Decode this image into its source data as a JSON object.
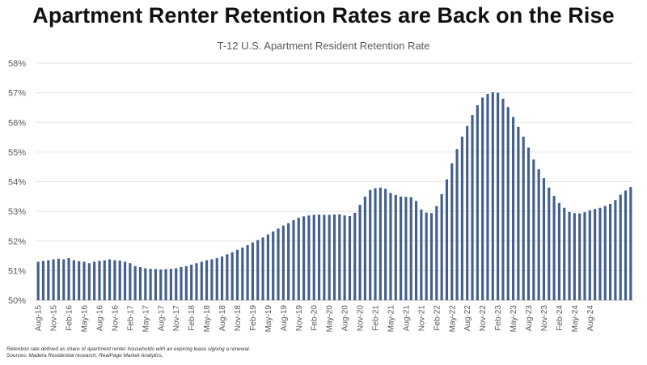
{
  "chart_data": {
    "type": "bar",
    "headline": "Apartment Renter Retention Rates are Back on the Rise",
    "title": "T-12 U.S. Apartment Resident Retention Rate",
    "xlabel": "",
    "ylabel": "",
    "ylim": [
      50,
      58
    ],
    "yticks": [
      "50%",
      "51%",
      "52%",
      "53%",
      "54%",
      "55%",
      "56%",
      "57%",
      "58%"
    ],
    "grid": true,
    "bar_color": "#44608F",
    "tick_labels": [
      "Aug-15",
      "Nov-15",
      "Feb-16",
      "May-16",
      "Aug-16",
      "Nov-16",
      "Feb-17",
      "May-17",
      "Aug-17",
      "Nov-17",
      "Feb-18",
      "May-18",
      "Aug-18",
      "Nov-18",
      "Feb-19",
      "May-19",
      "Aug-19",
      "Nov-19",
      "Feb-20",
      "May-20",
      "Aug-20",
      "Nov-20",
      "Feb-21",
      "May-21",
      "Aug-21",
      "Nov-21",
      "Feb-22",
      "May-22",
      "Aug-22",
      "Nov-22",
      "Feb-23",
      "May-23",
      "Aug-23",
      "Nov-23",
      "Feb-24",
      "May-24",
      "Aug-24"
    ],
    "values": [
      51.3,
      51.33,
      51.35,
      51.38,
      51.4,
      51.38,
      51.42,
      51.35,
      51.32,
      51.3,
      51.25,
      51.3,
      51.33,
      51.35,
      51.38,
      51.35,
      51.34,
      51.3,
      51.25,
      51.15,
      51.12,
      51.08,
      51.06,
      51.05,
      51.04,
      51.05,
      51.06,
      51.08,
      51.12,
      51.15,
      51.2,
      51.25,
      51.3,
      51.35,
      51.38,
      51.42,
      51.48,
      51.55,
      51.62,
      51.7,
      51.78,
      51.86,
      51.95,
      52.03,
      52.12,
      52.22,
      52.32,
      52.42,
      52.52,
      52.6,
      52.7,
      52.78,
      52.83,
      52.86,
      52.88,
      52.89,
      52.88,
      52.88,
      52.89,
      52.9,
      52.86,
      52.84,
      52.95,
      53.22,
      53.5,
      53.72,
      53.78,
      53.8,
      53.76,
      53.62,
      53.55,
      53.5,
      53.49,
      53.48,
      53.35,
      53.06,
      52.96,
      52.94,
      53.18,
      53.58,
      54.08,
      54.62,
      55.1,
      55.52,
      55.88,
      56.25,
      56.58,
      56.84,
      56.96,
      57.02,
      57.0,
      56.8,
      56.52,
      56.18,
      55.85,
      55.52,
      55.15,
      54.75,
      54.42,
      54.12,
      53.8,
      53.52,
      53.28,
      53.12,
      52.98,
      52.94,
      52.93,
      52.97,
      53.03,
      53.08,
      53.12,
      53.18,
      53.25,
      53.38,
      53.56,
      53.7,
      53.82
    ]
  },
  "footnote": {
    "line1": "Retention rate defined as share of apartment renter households with an expiring lease signing a renewal.",
    "line2": "Sources: Madera Residential research, RealPage Market Analytics."
  }
}
